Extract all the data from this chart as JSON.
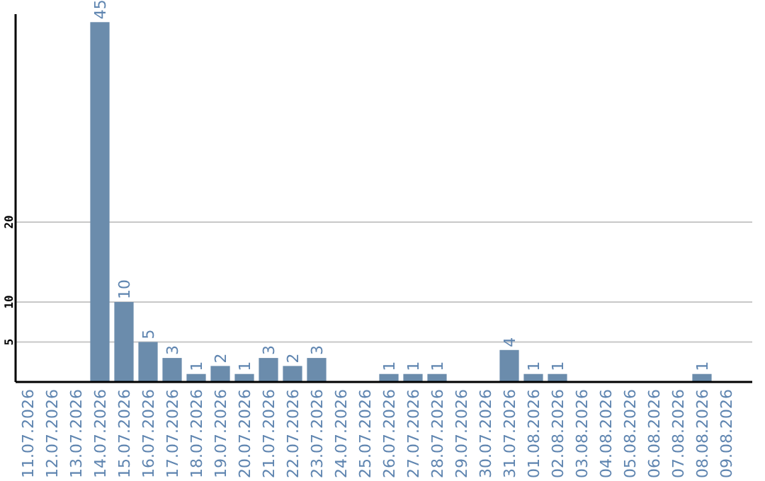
{
  "chart_data": {
    "type": "bar",
    "categories": [
      "11.07.2026",
      "12.07.2026",
      "13.07.2026",
      "14.07.2026",
      "15.07.2026",
      "16.07.2026",
      "17.07.2026",
      "18.07.2026",
      "19.07.2026",
      "20.07.2026",
      "21.07.2026",
      "22.07.2026",
      "23.07.2026",
      "24.07.2026",
      "25.07.2026",
      "26.07.2026",
      "27.07.2026",
      "28.07.2026",
      "29.07.2026",
      "30.07.2026",
      "31.07.2026",
      "01.08.2026",
      "02.08.2026",
      "03.08.2026",
      "04.08.2026",
      "05.08.2026",
      "06.08.2026",
      "07.08.2026",
      "08.08.2026",
      "09.08.2026"
    ],
    "values": [
      null,
      null,
      null,
      45,
      10,
      5,
      3,
      1,
      2,
      1,
      3,
      2,
      3,
      null,
      null,
      1,
      1,
      1,
      null,
      null,
      4,
      1,
      1,
      null,
      null,
      null,
      null,
      null,
      1,
      null
    ],
    "color": "#6b8cac",
    "ylim": [
      0,
      46
    ],
    "yticks": [
      5,
      10,
      20
    ],
    "grid": "y",
    "data_labels": true
  }
}
